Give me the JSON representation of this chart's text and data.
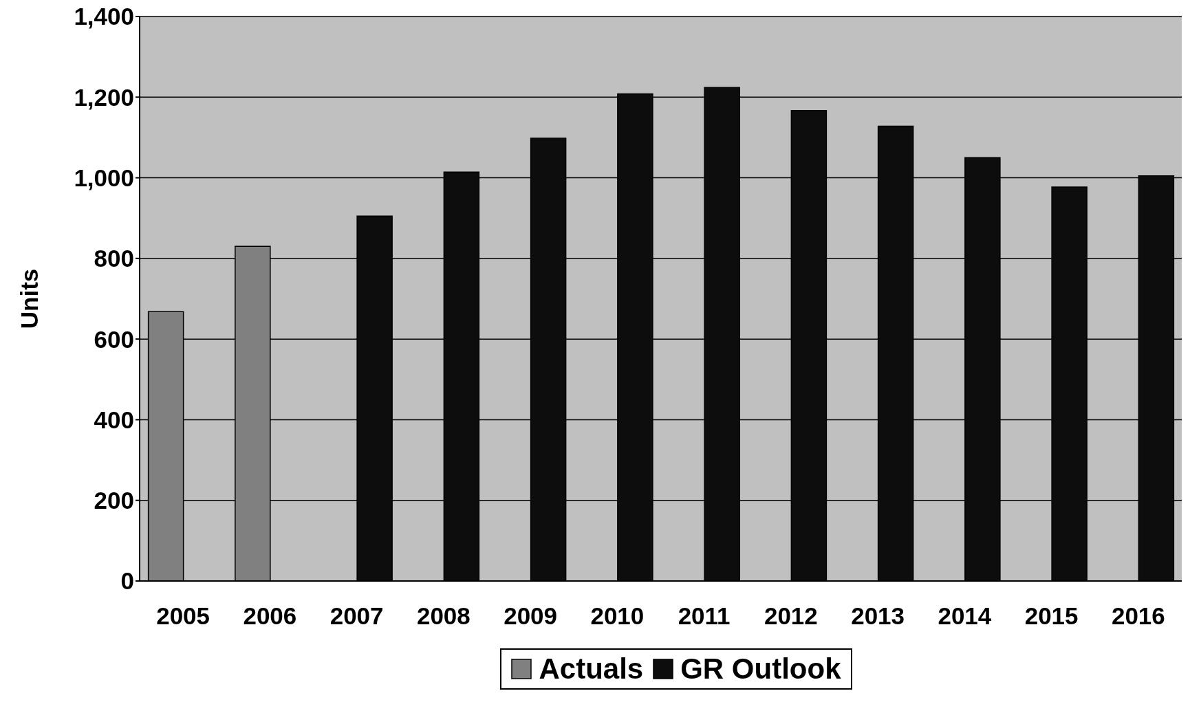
{
  "chart_data": {
    "type": "bar",
    "ylabel": "Units",
    "categories": [
      "2005",
      "2006",
      "2007",
      "2008",
      "2009",
      "2010",
      "2011",
      "2012",
      "2013",
      "2014",
      "2015",
      "2016"
    ],
    "series": [
      {
        "name": "Actuals",
        "color": "#808080",
        "values": [
          668,
          830,
          null,
          null,
          null,
          null,
          null,
          null,
          null,
          null,
          null,
          null
        ]
      },
      {
        "name": "GR Outlook",
        "color": "#0d0d0d",
        "values": [
          null,
          null,
          905,
          1014,
          1098,
          1208,
          1224,
          1167,
          1128,
          1050,
          977,
          1005
        ]
      }
    ],
    "ylim": [
      0,
      1400
    ],
    "yticks": [
      {
        "value": 0,
        "label": "0"
      },
      {
        "value": 200,
        "label": "200"
      },
      {
        "value": 400,
        "label": "400"
      },
      {
        "value": 600,
        "label": "600"
      },
      {
        "value": 800,
        "label": "800"
      },
      {
        "value": 1000,
        "label": "1,000"
      },
      {
        "value": 1200,
        "label": "1,200"
      },
      {
        "value": 1400,
        "label": "1,400"
      }
    ],
    "grid": "y",
    "legend": "bottom"
  }
}
